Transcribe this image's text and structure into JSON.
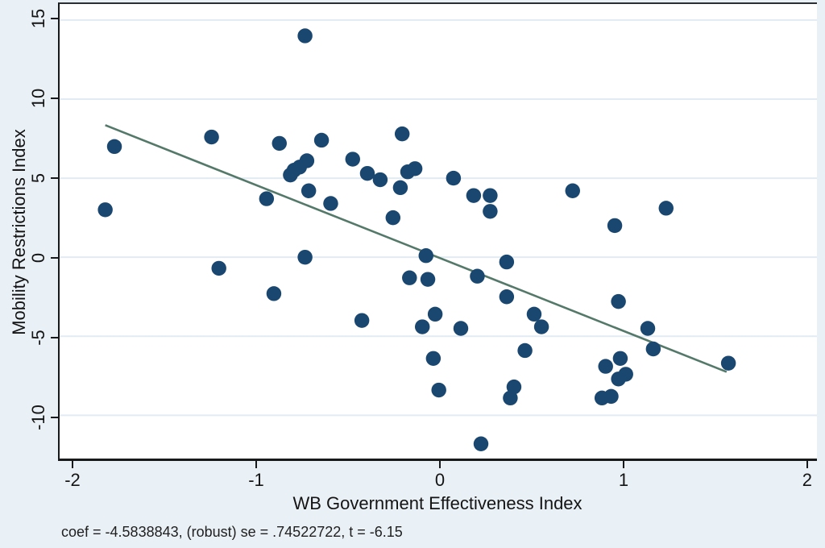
{
  "chart_data": {
    "type": "scatter",
    "title": "",
    "xlabel": "WB Government Effectiveness Index",
    "ylabel": "Mobility Restrictions Index",
    "caption": "coef = -4.5838843, (robust) se = .74522722, t = -6.15",
    "regression": {
      "coef": -4.5838843,
      "robust_se": 0.74522722,
      "t": -6.15
    },
    "x_ticks": [
      -2,
      -1,
      0,
      1,
      2
    ],
    "y_ticks": [
      15,
      10,
      5,
      0,
      -5,
      -10
    ],
    "xlim": [
      -2.079,
      2.053
    ],
    "ylim": [
      -12.73,
      16.01
    ],
    "grid": "horizontal",
    "legend": "none",
    "fit_line": {
      "x1": -1.83,
      "y1": 8.35,
      "x2": 1.56,
      "y2": -7.25
    },
    "points": [
      [
        -1.78,
        7.0
      ],
      [
        -1.83,
        3.0
      ],
      [
        -1.25,
        7.6
      ],
      [
        -1.21,
        -0.7
      ],
      [
        -0.95,
        3.7
      ],
      [
        -0.91,
        -2.3
      ],
      [
        -0.88,
        7.2
      ],
      [
        -0.82,
        5.2
      ],
      [
        -0.8,
        5.5
      ],
      [
        -0.77,
        5.7
      ],
      [
        -0.74,
        14.0
      ],
      [
        -0.74,
        0.0
      ],
      [
        -0.73,
        6.1
      ],
      [
        -0.72,
        4.2
      ],
      [
        -0.65,
        7.4
      ],
      [
        -0.6,
        3.4
      ],
      [
        -0.48,
        6.2
      ],
      [
        -0.43,
        -4.0
      ],
      [
        -0.4,
        5.3
      ],
      [
        -0.33,
        4.9
      ],
      [
        -0.26,
        2.5
      ],
      [
        -0.22,
        4.4
      ],
      [
        -0.21,
        7.8
      ],
      [
        -0.18,
        5.4
      ],
      [
        -0.17,
        -1.3
      ],
      [
        -0.14,
        5.6
      ],
      [
        -0.1,
        -4.4
      ],
      [
        -0.08,
        0.1
      ],
      [
        -0.07,
        -1.4
      ],
      [
        -0.04,
        -6.4
      ],
      [
        -0.03,
        -3.6
      ],
      [
        -0.01,
        -8.4
      ],
      [
        0.07,
        5.0
      ],
      [
        0.11,
        -4.5
      ],
      [
        0.18,
        3.9
      ],
      [
        0.2,
        -1.2
      ],
      [
        0.22,
        -11.8
      ],
      [
        0.27,
        3.9
      ],
      [
        0.27,
        2.9
      ],
      [
        0.36,
        -0.3
      ],
      [
        0.36,
        -2.5
      ],
      [
        0.38,
        -8.9
      ],
      [
        0.4,
        -8.2
      ],
      [
        0.46,
        -5.9
      ],
      [
        0.51,
        -3.6
      ],
      [
        0.55,
        -4.4
      ],
      [
        0.72,
        4.2
      ],
      [
        0.88,
        -8.9
      ],
      [
        0.9,
        -6.9
      ],
      [
        0.93,
        -8.8
      ],
      [
        0.95,
        2.0
      ],
      [
        0.97,
        -2.8
      ],
      [
        0.97,
        -7.7
      ],
      [
        0.98,
        -6.4
      ],
      [
        1.01,
        -7.4
      ],
      [
        1.13,
        -4.5
      ],
      [
        1.16,
        -5.8
      ],
      [
        1.23,
        3.1
      ],
      [
        1.57,
        -6.7
      ]
    ],
    "colors": {
      "dot": "#1a476f",
      "fit_line": "#54796a",
      "plot_bg": "#ffffff",
      "figure_bg": "#eaf1f6",
      "grid": "#e2ebf3",
      "axis": "#17191b",
      "text": "#141414"
    }
  }
}
